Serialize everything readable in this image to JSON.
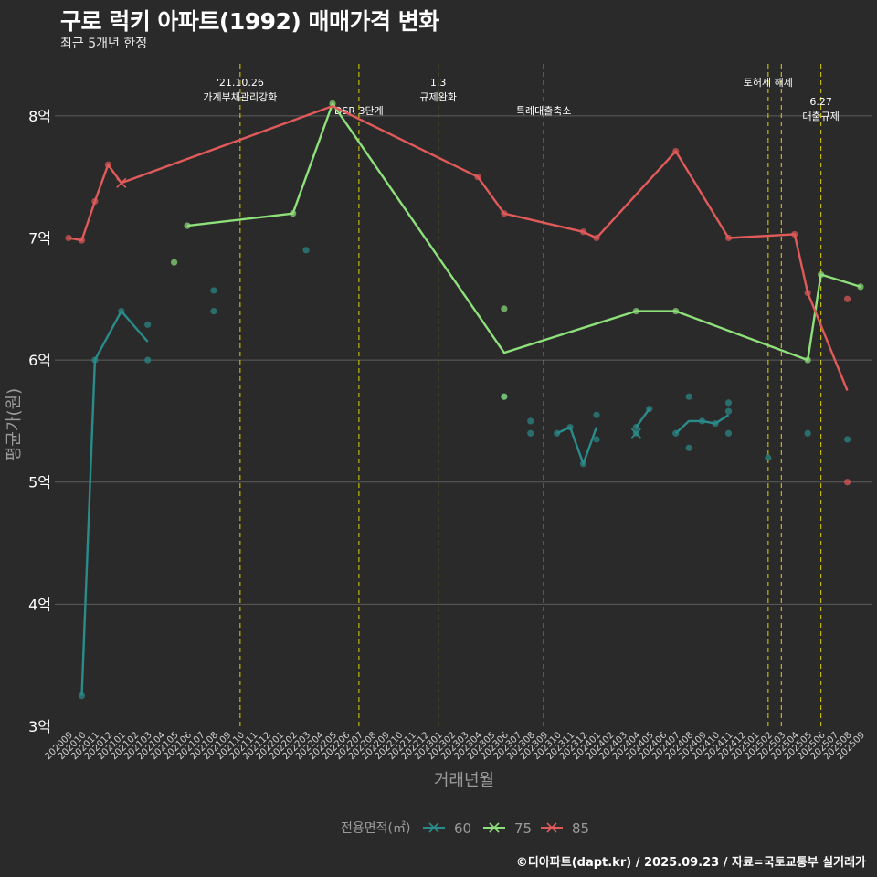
{
  "title": "구로 럭키 아파트(1992) 매매가격 변화",
  "subtitle": "최근 5개년 한정",
  "caption": "©디아파트(dapt.kr) / 2025.09.23 / 자료=국토교통부 실거래가",
  "colors": {
    "background": "#2b2a2b",
    "grid": "#5d5d5d",
    "vline": "#d9d400",
    "s60": "#2a8c8a",
    "s75": "#8ee07a",
    "s85": "#e05a5a"
  },
  "chart_data": {
    "type": "line",
    "xlabel": "거래년월",
    "ylabel": "평균가(원)",
    "ylim": [
      3,
      8.5
    ],
    "yticks": [
      {
        "value": 3,
        "label": "3억"
      },
      {
        "value": 4,
        "label": "4억"
      },
      {
        "value": 5,
        "label": "5억"
      },
      {
        "value": 6,
        "label": "6억"
      },
      {
        "value": 7,
        "label": "7억"
      },
      {
        "value": 8,
        "label": "8억"
      }
    ],
    "grid": true,
    "legend": {
      "title": "전용면적(㎡)",
      "position": "bottom"
    },
    "x_categories": [
      "202009",
      "202010",
      "202011",
      "202012",
      "202101",
      "202102",
      "202103",
      "202104",
      "202105",
      "202106",
      "202107",
      "202108",
      "202109",
      "202110",
      "202111",
      "202112",
      "202201",
      "202202",
      "202203",
      "202204",
      "202205",
      "202206",
      "202207",
      "202208",
      "202209",
      "202210",
      "202211",
      "202212",
      "202301",
      "202302",
      "202303",
      "202304",
      "202305",
      "202306",
      "202307",
      "202308",
      "202309",
      "202310",
      "202311",
      "202312",
      "202401",
      "202402",
      "202403",
      "202404",
      "202405",
      "202406",
      "202407",
      "202408",
      "202409",
      "202410",
      "202411",
      "202412",
      "202501",
      "202502",
      "202503",
      "202504",
      "202505",
      "202506",
      "202507",
      "202508",
      "202509"
    ],
    "events": [
      {
        "x": 13.0,
        "lines": [
          "'21.10.26",
          "가계부채관리강화"
        ],
        "row": 0
      },
      {
        "x": 22.0,
        "lines": [
          "DSR 3단계"
        ],
        "row": 1
      },
      {
        "x": 28.0,
        "lines": [
          "1.3",
          "규제완화"
        ],
        "row": 0
      },
      {
        "x": 36.0,
        "lines": [
          "특례대출축소"
        ],
        "row": 1
      },
      {
        "x": 53.0,
        "lines": [
          "토허제 해제"
        ],
        "row": 0
      },
      {
        "x": 54.0,
        "lines": [],
        "row": 0
      },
      {
        "x": 57.0,
        "lines": [
          "6.27",
          "대출규제"
        ],
        "row": 2
      }
    ],
    "series": [
      {
        "name": "60",
        "color_key": "s60",
        "line": [
          [
            1,
            3.25
          ],
          [
            2,
            6.0
          ],
          [
            4,
            6.4
          ],
          [
            6,
            6.15
          ],
          null,
          [
            37,
            5.4
          ],
          [
            38,
            5.45
          ],
          [
            39,
            5.15
          ],
          [
            40,
            5.45
          ],
          null,
          [
            43,
            5.45
          ],
          [
            44,
            5.6
          ],
          null,
          [
            46,
            5.4
          ],
          [
            47,
            5.5
          ],
          [
            48,
            5.5
          ],
          [
            49,
            5.48
          ],
          [
            50,
            5.55
          ]
        ],
        "points": [
          [
            1,
            3.25
          ],
          [
            2,
            6.0
          ],
          [
            4,
            6.4
          ],
          [
            6,
            6.29
          ],
          [
            6,
            6.0
          ],
          [
            11,
            6.57
          ],
          [
            11,
            6.4
          ],
          [
            18,
            6.9
          ],
          [
            33,
            5.7
          ],
          [
            35,
            5.5
          ],
          [
            35,
            5.4
          ],
          [
            37,
            5.4
          ],
          [
            38,
            5.45
          ],
          [
            39,
            5.15
          ],
          [
            40,
            5.55
          ],
          [
            40,
            5.35
          ],
          [
            43,
            5.45
          ],
          [
            43,
            5.4
          ],
          [
            44,
            5.6
          ],
          [
            46,
            5.4
          ],
          [
            47,
            5.7
          ],
          [
            47,
            5.28
          ],
          [
            48,
            5.5
          ],
          [
            49,
            5.48
          ],
          [
            50,
            5.65
          ],
          [
            50,
            5.58
          ],
          [
            50,
            5.4
          ],
          [
            53,
            5.2
          ],
          [
            56,
            5.4
          ],
          [
            59,
            5.35
          ]
        ],
        "crosses": [
          [
            43,
            5.4
          ]
        ]
      },
      {
        "name": "75",
        "color_key": "s75",
        "line": [
          [
            9,
            7.1
          ],
          [
            17,
            7.2
          ],
          [
            20,
            8.1
          ],
          [
            33,
            6.06
          ],
          [
            43,
            6.4
          ],
          [
            46,
            6.4
          ],
          [
            56,
            6.0
          ],
          [
            57,
            6.7
          ],
          [
            60,
            6.6
          ]
        ],
        "points": [
          [
            8,
            6.8
          ],
          [
            9,
            7.1
          ],
          [
            17,
            7.2
          ],
          [
            20,
            8.1
          ],
          [
            33,
            6.42
          ],
          [
            33,
            5.7
          ],
          [
            43,
            6.4
          ],
          [
            46,
            6.4
          ],
          [
            56,
            6.0
          ],
          [
            57,
            6.7
          ],
          [
            60,
            6.6
          ]
        ],
        "crosses": []
      },
      {
        "name": "85",
        "color_key": "s85",
        "line": [
          [
            0,
            7.0
          ],
          [
            1,
            6.98
          ],
          [
            2,
            7.3
          ],
          [
            3,
            7.6
          ],
          [
            4,
            7.45
          ],
          [
            20,
            8.08
          ],
          [
            31,
            7.5
          ],
          [
            33,
            7.2
          ],
          [
            39,
            7.05
          ],
          [
            40,
            7.0
          ],
          [
            46,
            7.71
          ],
          [
            50,
            7.0
          ],
          [
            55,
            7.03
          ],
          [
            56,
            6.55
          ],
          [
            59,
            5.75
          ]
        ],
        "points": [
          [
            0,
            7.0
          ],
          [
            1,
            6.98
          ],
          [
            2,
            7.3
          ],
          [
            3,
            7.6
          ],
          [
            31,
            7.5
          ],
          [
            33,
            7.2
          ],
          [
            39,
            7.05
          ],
          [
            40,
            7.0
          ],
          [
            46,
            7.71
          ],
          [
            50,
            7.0
          ],
          [
            55,
            7.03
          ],
          [
            56,
            6.55
          ],
          [
            59,
            6.5
          ],
          [
            59,
            5.0
          ]
        ],
        "crosses": [
          [
            4,
            7.45
          ]
        ]
      }
    ]
  }
}
